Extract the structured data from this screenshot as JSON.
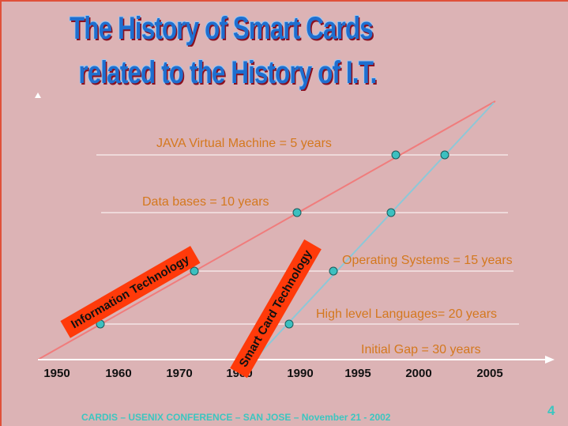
{
  "title": {
    "line1": "The History of Smart Cards",
    "line2": "related to the History of I.T."
  },
  "milestones": [
    {
      "label": "JAVA Virtual Machine = 5 years"
    },
    {
      "label": "Data bases = 10 years"
    },
    {
      "label": "Operating Systems = 15 years"
    },
    {
      "label": "High level Languages= 20 years"
    },
    {
      "label": "Initial Gap = 30 years"
    }
  ],
  "timeline": {
    "years": [
      "1950",
      "1960",
      "1970",
      "1980",
      "1990",
      "1995",
      "2000",
      "2005"
    ]
  },
  "tracks": {
    "it": "Information Technology",
    "sc": "Smart Card Technology"
  },
  "footer": "CARDIS – USENIX CONFERENCE – SAN JOSE –  November 21 - 2002",
  "page_number": "4",
  "colors": {
    "it_line": "#f07c7c",
    "sc_line": "#8cc8d8",
    "dot": "#3cc0c0",
    "label": "#d4781e",
    "tag": "#ff3a0a",
    "title": "#1e6fd0",
    "footer": "#3cc6c0"
  }
}
